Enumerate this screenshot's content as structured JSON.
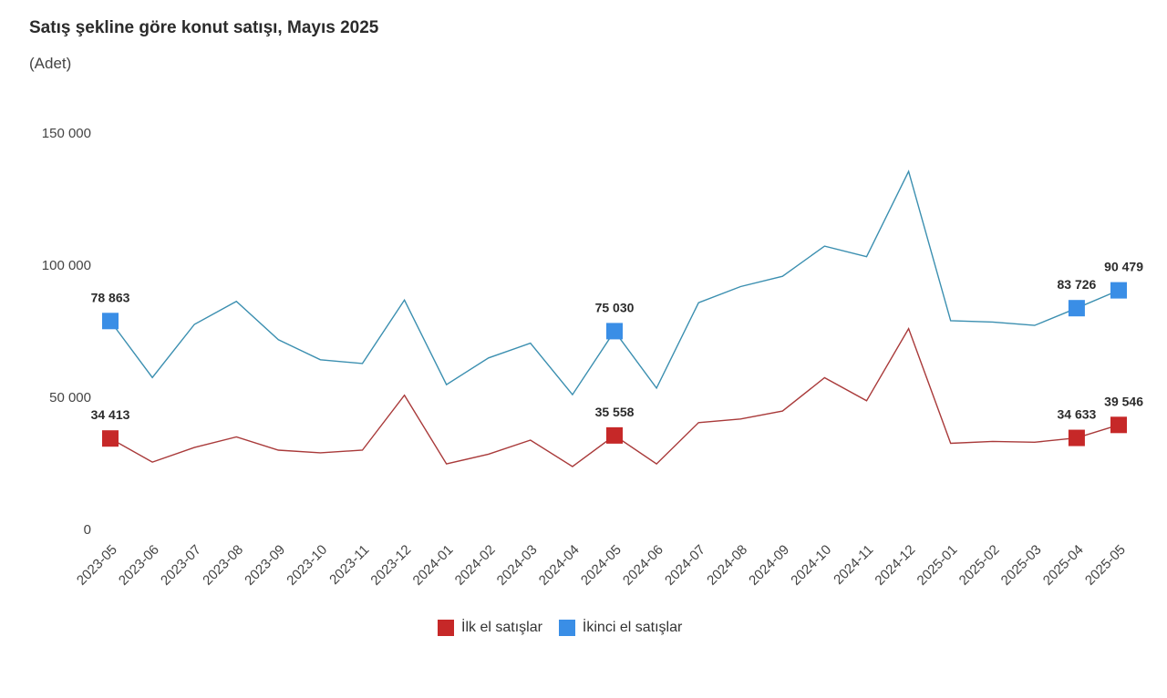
{
  "header": {
    "title": "Satış şekline göre konut satışı, Mayıs 2025",
    "subtitle": "(Adet)"
  },
  "chart_data": {
    "type": "line",
    "title": "Satış şekline göre konut satışı, Mayıs 2025",
    "subtitle": "(Adet)",
    "categories": [
      "2023-05",
      "2023-06",
      "2023-07",
      "2023-08",
      "2023-09",
      "2023-10",
      "2023-11",
      "2023-12",
      "2024-01",
      "2024-02",
      "2024-03",
      "2024-04",
      "2024-05",
      "2024-06",
      "2024-07",
      "2024-08",
      "2024-09",
      "2024-10",
      "2024-11",
      "2024-12",
      "2025-01",
      "2025-02",
      "2025-03",
      "2025-04",
      "2025-05"
    ],
    "ylim": [
      0,
      150000
    ],
    "yticks": [
      0,
      50000,
      100000,
      150000
    ],
    "ytick_labels": [
      "0",
      "50 000",
      "100 000",
      "150 000"
    ],
    "grid": false,
    "legend_position": "bottom",
    "series": [
      {
        "name": "İlk el satışlar",
        "color": "#a93a3a",
        "marker_color": "#c62828",
        "values": [
          34413,
          25500,
          31000,
          35000,
          30000,
          29000,
          30000,
          50800,
          24800,
          28500,
          33800,
          23800,
          35558,
          24800,
          40400,
          41800,
          44800,
          57400,
          48700,
          76000,
          32600,
          33300,
          33000,
          34633,
          39546
        ],
        "labeled_points": [
          {
            "index": 0,
            "label": "34 413"
          },
          {
            "index": 12,
            "label": "35 558"
          },
          {
            "index": 23,
            "label": "34 633"
          },
          {
            "index": 24,
            "label": "39 546"
          }
        ]
      },
      {
        "name": "İkinci el satışlar",
        "color": "#3b8fb0",
        "marker_color": "#3a8ee6",
        "values": [
          78863,
          57500,
          77600,
          86300,
          71800,
          64200,
          62800,
          86800,
          54800,
          64900,
          70500,
          51000,
          75030,
          53500,
          85800,
          91900,
          95800,
          107200,
          103200,
          135500,
          79000,
          78500,
          77200,
          83726,
          90479
        ],
        "labeled_points": [
          {
            "index": 0,
            "label": "78 863"
          },
          {
            "index": 12,
            "label": "75 030"
          },
          {
            "index": 23,
            "label": "83 726"
          },
          {
            "index": 24,
            "label": "90 479"
          }
        ]
      }
    ]
  }
}
